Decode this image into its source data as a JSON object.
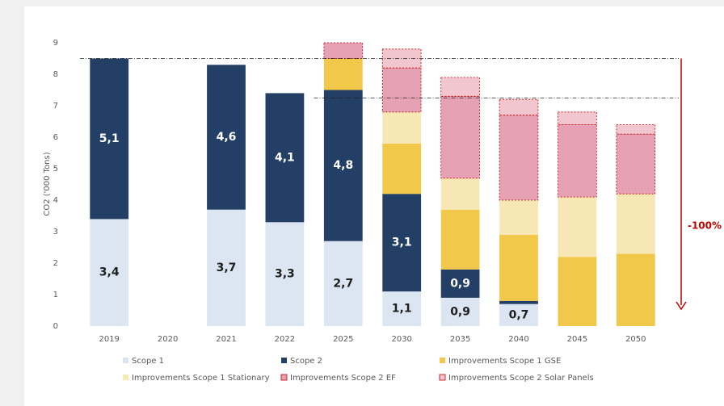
{
  "chart_data": {
    "type": "stacked_bar",
    "y_label": "CO2 ('000 Tons)",
    "categories": [
      "2019",
      "2020",
      "2021",
      "2022",
      "2025",
      "2030",
      "2035",
      "2040",
      "2045",
      "2050"
    ],
    "series": [
      {
        "name": "Scope 1",
        "color": "#dce6f2",
        "label_color": "#1f1f1f",
        "values": [
          3.4,
          null,
          3.7,
          3.3,
          2.7,
          1.1,
          0.9,
          0.7,
          null,
          null
        ],
        "value_labels": [
          "3,4",
          null,
          "3,7",
          "3,3",
          "2,7",
          "1,1",
          "0,9",
          "0,7",
          null,
          null
        ]
      },
      {
        "name": "Scope 2",
        "color": "#243f66",
        "label_color": "#ffffff",
        "values": [
          5.1,
          null,
          4.6,
          4.1,
          4.8,
          3.1,
          0.9,
          0.1,
          null,
          null
        ],
        "value_labels": [
          "5,1",
          null,
          "4,6",
          "4,1",
          "4,8",
          "3,1",
          "0,9",
          "0,1",
          null,
          null
        ]
      },
      {
        "name": "Improvements Scope 1 GSE",
        "color": "#f2c84b",
        "values": [
          null,
          null,
          null,
          null,
          1.0,
          1.6,
          1.9,
          2.1,
          2.2,
          2.3
        ]
      },
      {
        "name": "Improvements Scope 1 Stationary",
        "color": "#f7e7b4",
        "values": [
          null,
          null,
          null,
          null,
          null,
          1.0,
          1.0,
          1.1,
          1.9,
          1.9
        ]
      },
      {
        "name": "Improvements Scope 2 EF",
        "color": "#e6a2b4",
        "dashed": true,
        "values": [
          null,
          null,
          null,
          null,
          0.5,
          1.4,
          2.6,
          2.7,
          2.3,
          1.9
        ]
      },
      {
        "name": "Improvements Scope 2 Solar Panels",
        "color": "#f2c6cf",
        "dashed": true,
        "values": [
          null,
          null,
          null,
          null,
          null,
          0.6,
          0.6,
          0.5,
          0.4,
          0.3
        ]
      }
    ],
    "reference_lines": [
      8.5,
      7.25
    ],
    "annotation": "-100%",
    "ylim": [
      0,
      9
    ],
    "yticks": [
      0,
      1,
      2,
      3,
      4,
      5,
      6,
      7,
      8,
      9
    ]
  }
}
